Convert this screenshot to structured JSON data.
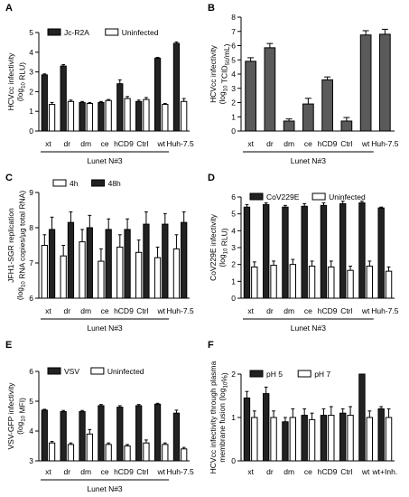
{
  "figure": {
    "panels": [
      {
        "letter": "A"
      },
      {
        "letter": "B"
      },
      {
        "letter": "C"
      },
      {
        "letter": "D"
      },
      {
        "letter": "E"
      },
      {
        "letter": "F"
      }
    ]
  },
  "chart_data": [
    {
      "panel": "A",
      "type": "bar",
      "ylabel": [
        "HCVcc infectivity",
        "(log10 RLU)"
      ],
      "ylim": [
        0,
        5
      ],
      "yticks": [
        "0",
        "1",
        "2",
        "3",
        "4",
        "5"
      ],
      "categories": [
        "xt",
        "dr",
        "dm",
        "ce",
        "hCD9",
        "Ctrl",
        "wt",
        "Huh-7.5"
      ],
      "group_label": "Lunet N#3",
      "series": [
        {
          "name": "Jc-R2A",
          "style": "filled",
          "values": [
            2.85,
            3.3,
            1.45,
            1.45,
            2.4,
            1.5,
            3.7,
            4.45
          ],
          "errors": [
            0.05,
            0.07,
            0.05,
            0.05,
            0.2,
            0.07,
            0.04,
            0.07
          ]
        },
        {
          "name": "Uninfected",
          "style": "open",
          "values": [
            1.35,
            1.5,
            1.4,
            1.55,
            1.65,
            1.6,
            1.35,
            1.5
          ],
          "errors": [
            0.1,
            0.07,
            0.05,
            0.05,
            0.1,
            0.1,
            0.05,
            0.15
          ]
        }
      ]
    },
    {
      "panel": "B",
      "type": "bar",
      "ylabel": [
        "HCVcc infectivity",
        "(log10 TCID50/mL)"
      ],
      "ylim": [
        0,
        8
      ],
      "yticks": [
        "0",
        "1",
        "2",
        "3",
        "4",
        "5",
        "6",
        "7",
        "8"
      ],
      "categories": [
        "xt",
        "dr",
        "dm",
        "ce",
        "hCD9",
        "Ctrl",
        "wt",
        "Huh-7.5"
      ],
      "group_label": "Lunet N#3",
      "series": [
        {
          "name": "",
          "style": "gray",
          "values": [
            4.9,
            5.85,
            0.7,
            1.9,
            3.6,
            0.7,
            6.75,
            6.8
          ],
          "errors": [
            0.25,
            0.3,
            0.15,
            0.4,
            0.2,
            0.25,
            0.3,
            0.35
          ]
        }
      ]
    },
    {
      "panel": "C",
      "type": "bar",
      "ylabel": [
        "JFH1-SGR replication",
        "(log10 RNA copies/µg total RNA)"
      ],
      "ylim": [
        6,
        9
      ],
      "yticks": [
        "6",
        "7",
        "8",
        "9"
      ],
      "categories": [
        "xt",
        "dr",
        "dm",
        "ce",
        "hCD9",
        "Ctrl",
        "wt",
        "Huh-7.5"
      ],
      "group_label": "Lunet N#3",
      "series": [
        {
          "name": "4h",
          "style": "open",
          "values": [
            7.5,
            7.2,
            7.6,
            7.05,
            7.45,
            7.3,
            7.15,
            7.4
          ],
          "errors": [
            0.3,
            0.3,
            0.35,
            0.35,
            0.35,
            0.35,
            0.3,
            0.4
          ]
        },
        {
          "name": "48h",
          "style": "filled",
          "values": [
            7.95,
            8.15,
            8.0,
            7.95,
            7.95,
            8.1,
            8.1,
            8.15
          ],
          "errors": [
            0.35,
            0.3,
            0.35,
            0.3,
            0.3,
            0.35,
            0.3,
            0.3
          ]
        }
      ]
    },
    {
      "panel": "D",
      "type": "bar",
      "ylabel": [
        "CoV229E infectivity",
        "(log10 RLU)"
      ],
      "ylim": [
        0,
        6
      ],
      "yticks": [
        "0",
        "1",
        "2",
        "3",
        "4",
        "5",
        "6"
      ],
      "categories": [
        "xt",
        "dr",
        "dm",
        "ce",
        "hCD9",
        "Ctrl",
        "wt",
        "Huh-7.5"
      ],
      "group_label": "Lunet N#3",
      "series": [
        {
          "name": "CoV229E",
          "style": "filled",
          "values": [
            5.4,
            5.55,
            5.4,
            5.45,
            5.5,
            5.6,
            5.65,
            5.35
          ],
          "errors": [
            0.15,
            0.1,
            0.1,
            0.15,
            0.15,
            0.15,
            0.1,
            0.05
          ]
        },
        {
          "name": "Uninfected",
          "style": "open",
          "values": [
            1.85,
            1.95,
            2.0,
            1.9,
            1.85,
            1.65,
            1.9,
            1.6
          ],
          "errors": [
            0.3,
            0.25,
            0.3,
            0.3,
            0.35,
            0.25,
            0.3,
            0.25
          ]
        }
      ]
    },
    {
      "panel": "E",
      "type": "bar",
      "ylabel": [
        "VSV-GFP infectivity",
        "(log10 MFI)"
      ],
      "ylim": [
        3,
        6
      ],
      "yticks": [
        "3",
        "4",
        "5",
        "6"
      ],
      "categories": [
        "xt",
        "dr",
        "dm",
        "ce",
        "hCD9",
        "Ctrl",
        "wt",
        "Huh-7.5"
      ],
      "group_label": "Lunet N#3",
      "series": [
        {
          "name": "VSV",
          "style": "filled",
          "values": [
            4.7,
            4.65,
            4.65,
            4.85,
            4.8,
            4.85,
            4.9,
            4.6
          ],
          "errors": [
            0.03,
            0.04,
            0.04,
            0.04,
            0.05,
            0.04,
            0.03,
            0.1
          ]
        },
        {
          "name": "Uninfected",
          "style": "open",
          "values": [
            3.6,
            3.55,
            3.9,
            3.55,
            3.5,
            3.6,
            3.55,
            3.4
          ],
          "errors": [
            0.05,
            0.05,
            0.15,
            0.05,
            0.05,
            0.1,
            0.05,
            0.05
          ]
        }
      ]
    },
    {
      "panel": "F",
      "type": "bar",
      "ylabel": [
        "HCVcc infectivity through plasma",
        "membrane fusion (log10%)"
      ],
      "ylim": [
        0,
        2
      ],
      "yticks": [
        "0",
        "1",
        "2"
      ],
      "ytick_positions": [
        0,
        1,
        2
      ],
      "categories": [
        "xt",
        "dr",
        "dm",
        "ce",
        "hCD9",
        "Ctrl",
        "wt",
        "wt+Inh."
      ],
      "group_label": "",
      "series": [
        {
          "name": "pH 5",
          "style": "filled",
          "values": [
            1.45,
            1.55,
            0.9,
            1.05,
            1.05,
            1.1,
            2.0,
            1.2
          ],
          "errors": [
            0.15,
            0.15,
            0.1,
            0.15,
            0.15,
            0.1,
            0.0,
            0.05
          ]
        },
        {
          "name": "pH 7",
          "style": "open",
          "values": [
            1.0,
            1.0,
            1.0,
            0.95,
            1.05,
            1.05,
            1.0,
            1.0
          ],
          "errors": [
            0.15,
            0.15,
            0.2,
            0.15,
            0.2,
            0.2,
            0.15,
            0.2
          ]
        }
      ]
    }
  ]
}
